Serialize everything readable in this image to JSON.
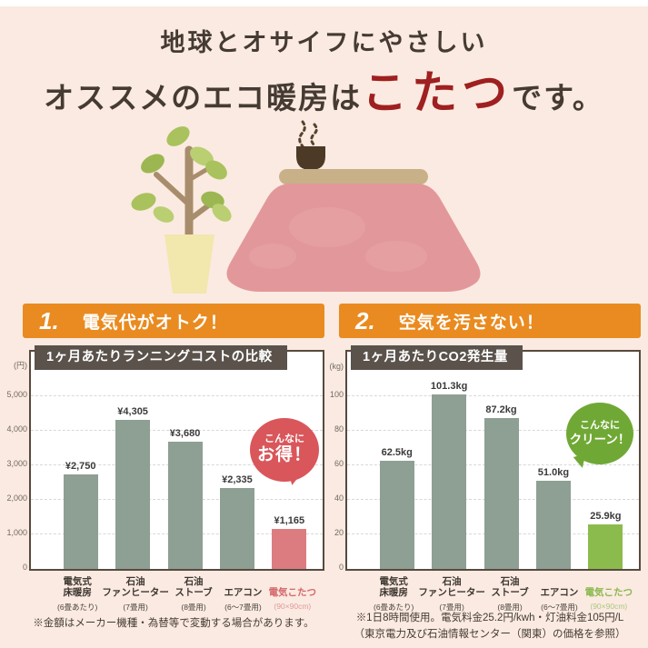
{
  "header": {
    "line1": "地球とオサイフにやさしい",
    "line2_prefix": "オススメのエコ暖房は",
    "line2_highlight": "こたつ",
    "line2_suffix": "です。"
  },
  "colors": {
    "background": "#fbeae1",
    "banner_orange": "#e98b20",
    "headline_red": "#9e2020",
    "chart_title_bar": "#5a524b",
    "panel_border": "#574a3e",
    "bar_sage": "#8e9f94",
    "bar_pink": "#dc7c81",
    "bar_green": "#8cbb4d",
    "badge_red": "#d9565b",
    "badge_green": "#70a835"
  },
  "sections": [
    {
      "number": "1.",
      "title": "電気代がオトク！",
      "badge_line1": "こんなに",
      "badge_line2": "お得！",
      "note_lines": [
        "※金額はメーカー機種・為替等で変動する場合があります。"
      ]
    },
    {
      "number": "2.",
      "title": "空気を汚さない！",
      "badge_line1": "こんなに",
      "badge_line2": "クリーン！",
      "note_lines": [
        "※1日8時間使用。電気料金25.2円/kwh・灯油料金105円/L",
        "（東京電力及び石油情報センター（関東）の価格を参照）"
      ]
    }
  ],
  "chart_data": [
    {
      "type": "bar",
      "title": "1ヶ月あたりランニングコストの比較",
      "unit_label": "(円)",
      "ylim": [
        0,
        5000
      ],
      "yticks": [
        "5,000",
        "4,000",
        "3,000",
        "2,000",
        "1,000",
        "0"
      ],
      "grid": "dashed",
      "legend": "none",
      "categories": [
        "電気式\n床暖房",
        "石油\nファンヒーター",
        "石油\nストーブ",
        "エアコン",
        "電気こたつ"
      ],
      "category_subs": [
        "(6畳あたり)",
        "(7畳用)",
        "(8畳用)",
        "(6〜7畳用)",
        "(90×90cm)"
      ],
      "values": [
        2750,
        4305,
        3680,
        2335,
        1165
      ],
      "value_labels": [
        "¥2,750",
        "¥4,305",
        "¥3,680",
        "¥2,335",
        "¥1,165"
      ],
      "bar_color": "#8e9f94",
      "highlight_index": 4,
      "highlight_color": "#dc7c81",
      "highlight_label_color": "#d4666a",
      "highlight_sub_color": "#dd9a9c"
    },
    {
      "type": "bar",
      "title": "1ヶ月あたりCO2発生量",
      "unit_label": "(kg)",
      "ylim": [
        0,
        100
      ],
      "yticks": [
        "100",
        "80",
        "60",
        "40",
        "20",
        "0"
      ],
      "grid": "dashed",
      "legend": "none",
      "categories": [
        "電気式\n床暖房",
        "石油\nファンヒーター",
        "石油\nストーブ",
        "エアコン",
        "電気こたつ"
      ],
      "category_subs": [
        "(6畳あたり)",
        "(7畳用)",
        "(8畳用)",
        "(6〜7畳用)",
        "(90×90cm)"
      ],
      "values": [
        62.5,
        101.3,
        87.2,
        51.0,
        25.9
      ],
      "value_labels": [
        "62.5kg",
        "101.3kg",
        "87.2kg",
        "51.0kg",
        "25.9kg"
      ],
      "bar_color": "#8e9f94",
      "highlight_index": 4,
      "highlight_color": "#8cbb4d",
      "highlight_label_color": "#8ab84e",
      "highlight_sub_color": "#a8c87e"
    }
  ]
}
